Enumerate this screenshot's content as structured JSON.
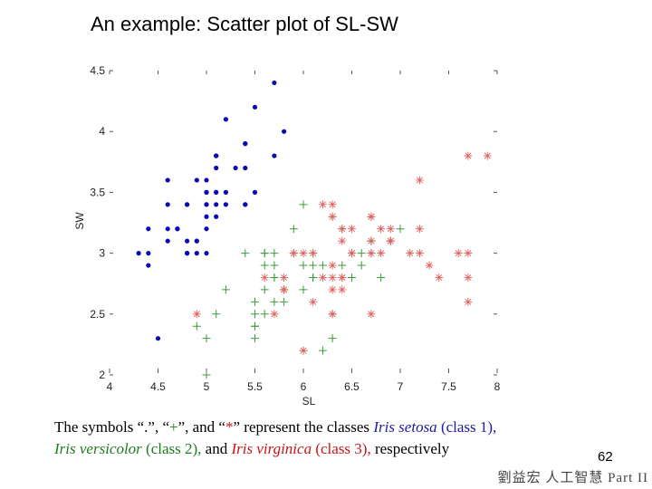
{
  "slide": {
    "title": "An example: Scatter plot of SL-SW",
    "page_number": "62",
    "footer": "劉益宏 人工智慧 Part II"
  },
  "caption": {
    "line1": [
      {
        "text": "The symbols “.”, “",
        "style": ""
      },
      {
        "text": "+",
        "style": "green"
      },
      {
        "text": "”, and “",
        "style": ""
      },
      {
        "text": "*",
        "style": "red"
      },
      {
        "text": "” represent the classes ",
        "style": ""
      },
      {
        "text": "Iris setosa",
        "style": "it blue"
      },
      {
        "text": " (class 1),",
        "style": "blue"
      }
    ],
    "line2": [
      {
        "text": "Iris versicolor",
        "style": "it green"
      },
      {
        "text": " (class 2),",
        "style": "green"
      },
      {
        "text": " and ",
        "style": ""
      },
      {
        "text": "Iris virginica",
        "style": "it red"
      },
      {
        "text": " (class 3),",
        "style": "red"
      },
      {
        "text": " respectively",
        "style": ""
      }
    ]
  },
  "chart_data": {
    "type": "scatter",
    "title": "",
    "xlabel": "SL",
    "ylabel": "SW",
    "xlim": [
      4,
      8
    ],
    "ylim": [
      2,
      4.5
    ],
    "xticks": [
      "4",
      "4.5",
      "5",
      "5.5",
      "6",
      "6.5",
      "7",
      "7.5",
      "8"
    ],
    "yticks": [
      "2",
      "2.5",
      "3",
      "3.5",
      "4",
      "4.5"
    ],
    "xtick_values": [
      4,
      4.5,
      5,
      5.5,
      6,
      6.5,
      7,
      7.5,
      8
    ],
    "ytick_values": [
      2,
      2.5,
      3,
      3.5,
      4,
      4.5
    ],
    "grid": false,
    "series": [
      {
        "marker": ".",
        "color": "#0a0ab4",
        "points": [
          [
            5.1,
            3.5
          ],
          [
            4.9,
            3.0
          ],
          [
            4.7,
            3.2
          ],
          [
            4.6,
            3.1
          ],
          [
            5.0,
            3.6
          ],
          [
            5.4,
            3.9
          ],
          [
            4.6,
            3.4
          ],
          [
            5.0,
            3.4
          ],
          [
            4.4,
            2.9
          ],
          [
            4.9,
            3.1
          ],
          [
            5.4,
            3.7
          ],
          [
            4.8,
            3.4
          ],
          [
            4.8,
            3.0
          ],
          [
            4.3,
            3.0
          ],
          [
            5.8,
            4.0
          ],
          [
            5.7,
            4.4
          ],
          [
            5.4,
            3.9
          ],
          [
            5.1,
            3.5
          ],
          [
            5.7,
            3.8
          ],
          [
            5.1,
            3.8
          ],
          [
            5.4,
            3.4
          ],
          [
            5.1,
            3.7
          ],
          [
            4.6,
            3.6
          ],
          [
            5.1,
            3.3
          ],
          [
            4.8,
            3.4
          ],
          [
            5.0,
            3.0
          ],
          [
            5.0,
            3.4
          ],
          [
            5.2,
            3.5
          ],
          [
            5.2,
            3.4
          ],
          [
            4.7,
            3.2
          ],
          [
            4.8,
            3.1
          ],
          [
            5.4,
            3.4
          ],
          [
            5.2,
            4.1
          ],
          [
            5.5,
            4.2
          ],
          [
            4.9,
            3.1
          ],
          [
            5.0,
            3.2
          ],
          [
            5.5,
            3.5
          ],
          [
            4.9,
            3.6
          ],
          [
            4.4,
            3.0
          ],
          [
            5.1,
            3.4
          ],
          [
            5.0,
            3.5
          ],
          [
            4.5,
            2.3
          ],
          [
            4.4,
            3.2
          ],
          [
            5.0,
            3.5
          ],
          [
            5.1,
            3.8
          ],
          [
            4.8,
            3.0
          ],
          [
            5.1,
            3.8
          ],
          [
            4.6,
            3.2
          ],
          [
            5.3,
            3.7
          ],
          [
            5.0,
            3.3
          ]
        ]
      },
      {
        "marker": "+",
        "color": "#3c9a3c",
        "points": [
          [
            7.0,
            3.2
          ],
          [
            6.4,
            3.2
          ],
          [
            6.9,
            3.1
          ],
          [
            5.5,
            2.3
          ],
          [
            6.5,
            2.8
          ],
          [
            5.7,
            2.8
          ],
          [
            6.3,
            3.3
          ],
          [
            4.9,
            2.4
          ],
          [
            6.6,
            2.9
          ],
          [
            5.2,
            2.7
          ],
          [
            5.0,
            2.0
          ],
          [
            5.9,
            3.0
          ],
          [
            6.0,
            2.2
          ],
          [
            6.1,
            2.9
          ],
          [
            5.6,
            2.9
          ],
          [
            6.7,
            3.1
          ],
          [
            5.6,
            3.0
          ],
          [
            5.8,
            2.7
          ],
          [
            6.2,
            2.2
          ],
          [
            5.6,
            2.5
          ],
          [
            5.9,
            3.2
          ],
          [
            6.1,
            2.8
          ],
          [
            6.3,
            2.5
          ],
          [
            6.1,
            2.8
          ],
          [
            6.4,
            2.9
          ],
          [
            6.6,
            3.0
          ],
          [
            6.8,
            2.8
          ],
          [
            6.7,
            3.0
          ],
          [
            6.0,
            2.9
          ],
          [
            5.7,
            2.6
          ],
          [
            5.5,
            2.4
          ],
          [
            5.5,
            2.4
          ],
          [
            5.8,
            2.7
          ],
          [
            6.0,
            2.7
          ],
          [
            5.4,
            3.0
          ],
          [
            6.0,
            3.4
          ],
          [
            6.7,
            3.1
          ],
          [
            6.3,
            2.3
          ],
          [
            5.6,
            3.0
          ],
          [
            5.5,
            2.5
          ],
          [
            5.5,
            2.6
          ],
          [
            6.1,
            3.0
          ],
          [
            5.8,
            2.6
          ],
          [
            5.0,
            2.3
          ],
          [
            5.6,
            2.7
          ],
          [
            5.7,
            3.0
          ],
          [
            5.7,
            2.9
          ],
          [
            6.2,
            2.9
          ],
          [
            5.1,
            2.5
          ],
          [
            5.7,
            2.8
          ]
        ]
      },
      {
        "marker": "*",
        "color": "#e06060",
        "points": [
          [
            6.3,
            3.3
          ],
          [
            5.8,
            2.7
          ],
          [
            7.1,
            3.0
          ],
          [
            6.3,
            2.9
          ],
          [
            6.5,
            3.0
          ],
          [
            7.6,
            3.0
          ],
          [
            4.9,
            2.5
          ],
          [
            7.3,
            2.9
          ],
          [
            6.7,
            2.5
          ],
          [
            7.2,
            3.6
          ],
          [
            6.5,
            3.2
          ],
          [
            6.4,
            2.7
          ],
          [
            6.8,
            3.0
          ],
          [
            5.7,
            2.5
          ],
          [
            5.8,
            2.8
          ],
          [
            6.4,
            3.2
          ],
          [
            6.5,
            3.0
          ],
          [
            7.7,
            3.8
          ],
          [
            7.7,
            2.6
          ],
          [
            6.0,
            2.2
          ],
          [
            6.9,
            3.2
          ],
          [
            5.6,
            2.8
          ],
          [
            7.7,
            2.8
          ],
          [
            6.3,
            2.7
          ],
          [
            6.7,
            3.3
          ],
          [
            7.2,
            3.2
          ],
          [
            6.2,
            2.8
          ],
          [
            6.1,
            3.0
          ],
          [
            6.4,
            2.8
          ],
          [
            7.2,
            3.0
          ],
          [
            7.4,
            2.8
          ],
          [
            7.9,
            3.8
          ],
          [
            6.4,
            2.8
          ],
          [
            6.3,
            2.8
          ],
          [
            6.1,
            2.6
          ],
          [
            7.7,
            3.0
          ],
          [
            6.3,
            3.4
          ],
          [
            6.4,
            3.1
          ],
          [
            6.0,
            3.0
          ],
          [
            6.9,
            3.1
          ],
          [
            6.7,
            3.1
          ],
          [
            6.9,
            3.1
          ],
          [
            5.8,
            2.7
          ],
          [
            6.8,
            3.2
          ],
          [
            6.7,
            3.3
          ],
          [
            6.7,
            3.0
          ],
          [
            6.3,
            2.5
          ],
          [
            6.5,
            3.0
          ],
          [
            6.2,
            3.4
          ],
          [
            5.9,
            3.0
          ]
        ]
      }
    ]
  }
}
